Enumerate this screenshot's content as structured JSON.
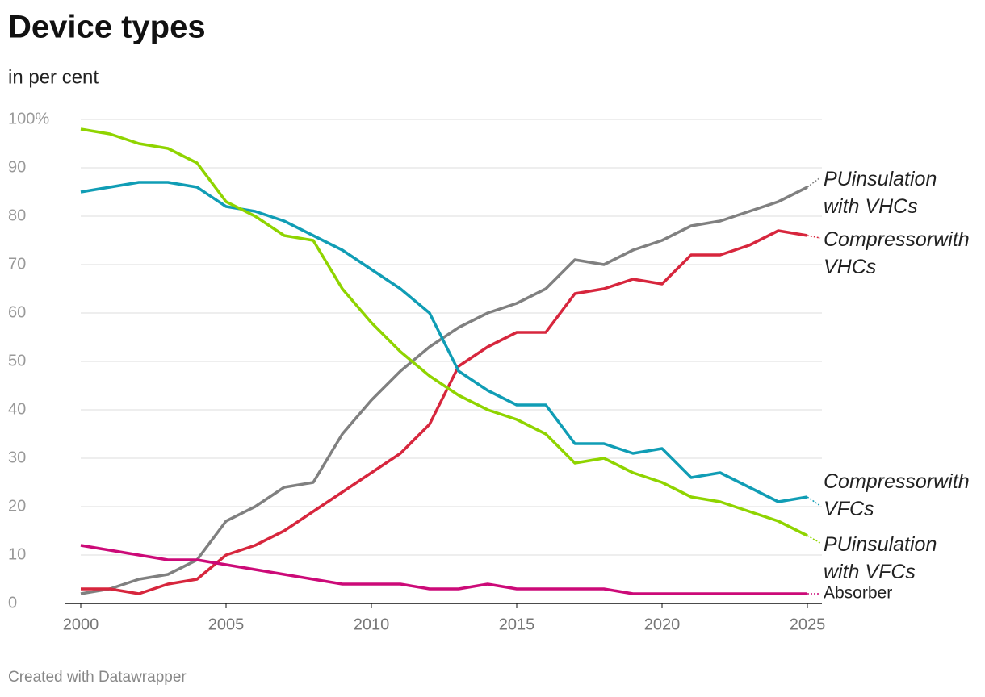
{
  "chart_data": {
    "type": "line",
    "title": "Device types",
    "subtitle": "in per cent",
    "footer": "Created with Datawrapper",
    "x": [
      2000,
      2001,
      2002,
      2003,
      2004,
      2005,
      2006,
      2007,
      2008,
      2009,
      2010,
      2011,
      2012,
      2013,
      2014,
      2015,
      2016,
      2017,
      2018,
      2019,
      2020,
      2021,
      2022,
      2023,
      2024,
      2025
    ],
    "xlim": [
      2000,
      2025
    ],
    "xticks": [
      2000,
      2005,
      2010,
      2015,
      2020,
      2025
    ],
    "ylim": [
      0,
      100
    ],
    "yticks": [
      0,
      10,
      20,
      30,
      40,
      50,
      60,
      70,
      80,
      90,
      {
        "value": 100,
        "label": "100%"
      }
    ],
    "grid": true,
    "series": [
      {
        "name": "PUinsulation with VHCs",
        "color": "#808080",
        "values": [
          2,
          3,
          5,
          6,
          9,
          17,
          20,
          24,
          25,
          35,
          42,
          48,
          53,
          57,
          60,
          62,
          65,
          71,
          70,
          73,
          75,
          78,
          79,
          81,
          83,
          86
        ]
      },
      {
        "name": "Compressorwith VHCs",
        "color": "#d7263d",
        "values": [
          3,
          3,
          2,
          4,
          5,
          10,
          12,
          15,
          19,
          23,
          27,
          31,
          37,
          49,
          53,
          56,
          56,
          64,
          65,
          67,
          66,
          72,
          72,
          74,
          77,
          76
        ]
      },
      {
        "name": "Compressorwith VFCs",
        "color": "#109db5",
        "values": [
          85,
          86,
          87,
          87,
          86,
          82,
          81,
          79,
          76,
          73,
          69,
          65,
          60,
          48,
          44,
          41,
          41,
          33,
          33,
          31,
          32,
          26,
          27,
          24,
          21,
          22
        ]
      },
      {
        "name": "PUinsulation with VFCs",
        "color": "#8fd400",
        "values": [
          98,
          97,
          95,
          94,
          91,
          83,
          80,
          76,
          75,
          65,
          58,
          52,
          47,
          43,
          40,
          38,
          35,
          29,
          30,
          27,
          25,
          22,
          21,
          19,
          17,
          14
        ]
      },
      {
        "name": "Absorber",
        "color": "#cc0a78",
        "values": [
          12,
          11,
          10,
          9,
          9,
          8,
          7,
          6,
          5,
          4,
          4,
          4,
          3,
          3,
          4,
          3,
          3,
          3,
          3,
          2,
          2,
          2,
          2,
          2,
          2,
          2
        ]
      }
    ]
  }
}
